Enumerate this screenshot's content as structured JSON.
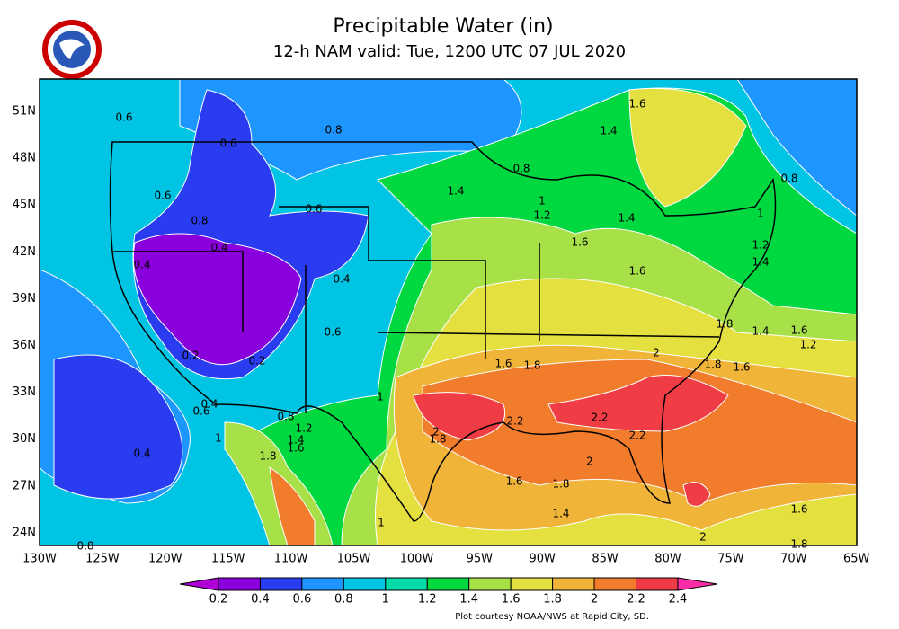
{
  "map": {
    "title": "Precipitable Water (in)",
    "subtitle": "12-h NAM valid: Tue, 1200 UTC 07 JUL 2020",
    "lat_labels": [
      "51N",
      "48N",
      "45N",
      "42N",
      "39N",
      "36N",
      "33N",
      "30N",
      "27N",
      "24N"
    ],
    "lon_labels": [
      "130W",
      "125W",
      "120W",
      "115W",
      "110W",
      "105W",
      "100W",
      "95W",
      "90W",
      "85W",
      "80W",
      "75W",
      "70W",
      "65W"
    ],
    "colorbar": {
      "ticks": [
        0.2,
        0.4,
        0.6,
        0.8,
        1,
        1.2,
        1.4,
        1.6,
        1.8,
        2,
        2.2,
        2.4
      ],
      "colors": [
        "#b000d8",
        "#8a00dc",
        "#2a3cf0",
        "#1e96ff",
        "#00c4e4",
        "#00dca8",
        "#00d840",
        "#a8e048",
        "#e4e040",
        "#f0b438",
        "#f07c2c",
        "#f03c44",
        "#ff2ca8"
      ]
    },
    "contour_labels": [
      0.6,
      0.8,
      0.6,
      1.6,
      1.4,
      0.8,
      0.8,
      0.6,
      1.4,
      1,
      1.2,
      0.6,
      0.8,
      1.4,
      1,
      0.4,
      1.6,
      1.2,
      0.4,
      1.4,
      1.6,
      0.4,
      1.8,
      0.6,
      1.4,
      1.6,
      1.2,
      2,
      0.2,
      0.2,
      1.6,
      1.8,
      1.8,
      1.6,
      1,
      0.4,
      0.6,
      0.8,
      1.2,
      2.2,
      2.2,
      2,
      1.8,
      2.2,
      1,
      1.4,
      1.6,
      1.8,
      0.4,
      2,
      1.6,
      1.8,
      1.4,
      1,
      1.6,
      2,
      1.8,
      0.8
    ],
    "footer": "Plot courtesy NOAA/NWS at Rapid City, SD."
  }
}
